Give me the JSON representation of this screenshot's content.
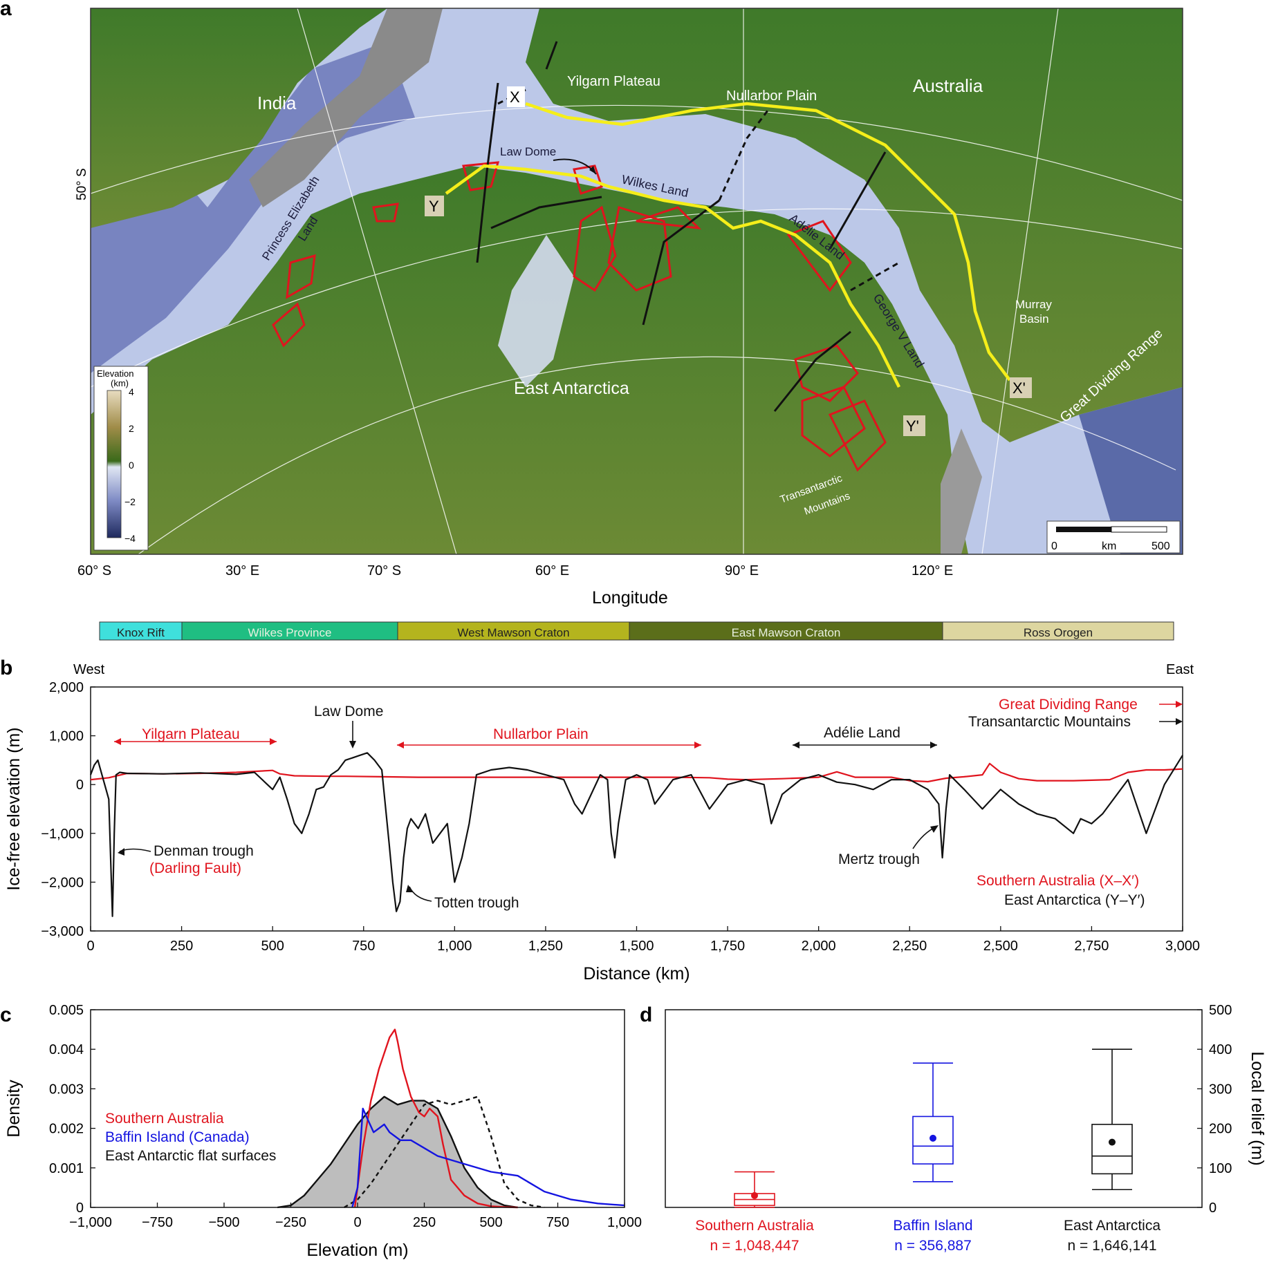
{
  "panel_a": {
    "letter": "a",
    "colorbar": {
      "title_line1": "Elevation",
      "title_line2": "(km)",
      "ticks": [
        "4",
        "2",
        "0",
        "−2",
        "−4"
      ]
    },
    "labels": {
      "india": "India",
      "australia": "Australia",
      "yilgarn": "Yilgarn Plateau",
      "nullarbor": "Nullarbor Plain",
      "law_dome": "Law Dome",
      "wilkes_land": "Wilkes Land",
      "adelie_land": "Adélie Land",
      "george_v": "George V Land",
      "princess_line1": "Princess Elizabeth",
      "princess_line2": "Land",
      "east_antarctica": "East Antarctica",
      "murray_line1": "Murray",
      "murray_line2": "Basin",
      "great_dividing": "Great Dividing Range",
      "transantarctic_line1": "Transantarctic",
      "transantarctic_line2": "Mountains",
      "X": "X",
      "Xp": "X'",
      "Y": "Y",
      "Yp": "Y'"
    },
    "lat_label_50": "50° S",
    "bottom_ticks": [
      "60° S",
      "30° E",
      "70° S",
      "60° E",
      "90° E",
      "120° E"
    ],
    "xlabel": "Longitude",
    "scalebar": {
      "left": "0",
      "mid": "km",
      "right": "500"
    },
    "provinces": [
      {
        "name": "Knox Rift",
        "color": "#3fe0dc",
        "dark_text": true
      },
      {
        "name": "Wilkes Province",
        "color": "#1fbe82",
        "dark_text": false
      },
      {
        "name": "West Mawson Craton",
        "color": "#b4b41e",
        "dark_text": true
      },
      {
        "name": "East Mawson Craton",
        "color": "#5b6e1a",
        "dark_text": false
      },
      {
        "name": "Ross Orogen",
        "color": "#ddd6a0",
        "dark_text": true
      }
    ]
  },
  "panel_b": {
    "letter": "b",
    "west": "West",
    "east": "East",
    "annotations": {
      "yilgarn": "Yilgarn Plateau",
      "law_dome": "Law Dome",
      "nullarbor": "Nullarbor Plain",
      "adelie": "Adélie Land",
      "gdr": "Great Dividing Range",
      "tam": "Transantarctic Mountains",
      "denman": "Denman trough",
      "darling": "(Darling Fault)",
      "totten": "Totten trough",
      "mertz": "Mertz trough",
      "legend_sa": "Southern Australia (X–X′)",
      "legend_ea": "East Antarctica (Y–Y′)"
    }
  },
  "panel_c": {
    "letter": "c",
    "legend": {
      "sa": "Southern Australia",
      "baffin": "Baffin Island (Canada)",
      "ea": "East Antarctic flat surfaces"
    }
  },
  "panel_d": {
    "letter": "d",
    "groups": [
      {
        "name": "Southern Australia",
        "n": "n = 1,048,447",
        "color": "#e0141e"
      },
      {
        "name": "Baffin Island",
        "n": "n = 356,887",
        "color": "#1414e0"
      },
      {
        "name": "East Antarctica",
        "n": "n = 1,646,141",
        "color": "#111111"
      }
    ]
  },
  "chart_data": [
    {
      "type": "line",
      "panel": "b",
      "xlabel": "Distance (km)",
      "ylabel": "Ice-free elevation (m)",
      "xlim": [
        0,
        3000
      ],
      "ylim": [
        -3000,
        2000
      ],
      "xticks": [
        "0",
        "250",
        "500",
        "750",
        "1,000",
        "1,250",
        "1,500",
        "1,750",
        "2,000",
        "2,250",
        "2,500",
        "2,750",
        "3,000"
      ],
      "yticks": [
        "2,000",
        "1,000",
        "0",
        "−1,000",
        "−2,000",
        "−3,000"
      ],
      "series": [
        {
          "name": "Southern Australia (X–X′)",
          "color": "#e0141e",
          "x": [
            0,
            50,
            100,
            200,
            300,
            400,
            500,
            520,
            560,
            650,
            700,
            800,
            900,
            1000,
            1100,
            1200,
            1300,
            1400,
            1500,
            1600,
            1700,
            1750,
            1800,
            1900,
            2000,
            2050,
            2100,
            2200,
            2250,
            2300,
            2350,
            2400,
            2450,
            2470,
            2500,
            2550,
            2600,
            2700,
            2800,
            2850,
            2900,
            2950,
            3000
          ],
          "y": [
            100,
            140,
            230,
            220,
            230,
            250,
            290,
            220,
            180,
            170,
            170,
            160,
            150,
            150,
            150,
            150,
            150,
            150,
            150,
            150,
            140,
            110,
            100,
            120,
            150,
            260,
            150,
            150,
            80,
            60,
            130,
            160,
            200,
            430,
            250,
            120,
            80,
            80,
            100,
            250,
            300,
            300,
            320
          ]
        },
        {
          "name": "East Antarctica (Y–Y′)",
          "color": "#111111",
          "x": [
            0,
            10,
            20,
            50,
            60,
            65,
            70,
            80,
            100,
            200,
            300,
            400,
            450,
            500,
            520,
            540,
            560,
            580,
            600,
            620,
            640,
            660,
            680,
            700,
            720,
            740,
            760,
            780,
            800,
            820,
            830,
            840,
            850,
            860,
            870,
            880,
            900,
            920,
            940,
            960,
            980,
            1000,
            1020,
            1040,
            1060,
            1100,
            1150,
            1200,
            1250,
            1300,
            1330,
            1350,
            1400,
            1420,
            1430,
            1440,
            1450,
            1470,
            1500,
            1530,
            1550,
            1600,
            1650,
            1700,
            1750,
            1800,
            1850,
            1870,
            1900,
            1950,
            2000,
            2050,
            2100,
            2150,
            2200,
            2250,
            2300,
            2330,
            2340,
            2350,
            2360,
            2400,
            2450,
            2500,
            2550,
            2600,
            2650,
            2700,
            2720,
            2750,
            2780,
            2850,
            2900,
            2950,
            3000
          ],
          "y": [
            200,
            400,
            500,
            -300,
            -2700,
            -1000,
            200,
            250,
            230,
            220,
            240,
            210,
            250,
            -100,
            150,
            -300,
            -800,
            -1000,
            -600,
            -100,
            -50,
            200,
            300,
            500,
            550,
            600,
            650,
            500,
            300,
            -1200,
            -2000,
            -2600,
            -2400,
            -1500,
            -900,
            -700,
            -900,
            -600,
            -1200,
            -1000,
            -800,
            -2000,
            -1500,
            -800,
            200,
            300,
            350,
            300,
            200,
            100,
            -400,
            -600,
            200,
            100,
            -1000,
            -1500,
            -800,
            100,
            200,
            100,
            -400,
            100,
            200,
            -500,
            0,
            100,
            0,
            -800,
            -200,
            100,
            200,
            50,
            0,
            -100,
            100,
            100,
            -100,
            -400,
            -1500,
            -500,
            200,
            -100,
            -500,
            -100,
            -400,
            -600,
            -700,
            -1000,
            -700,
            -800,
            -600,
            100,
            -1000,
            0,
            600
          ]
        }
      ]
    },
    {
      "type": "area",
      "panel": "c",
      "xlabel": "Elevation (m)",
      "ylabel": "Density",
      "xlim": [
        -1000,
        1000
      ],
      "ylim": [
        0,
        0.005
      ],
      "xticks": [
        "−1,000",
        "−750",
        "−500",
        "−250",
        "0",
        "250",
        "500",
        "750",
        "1,000"
      ],
      "yticks": [
        "0",
        "0.001",
        "0.002",
        "0.003",
        "0.004",
        "0.005"
      ],
      "series": [
        {
          "name": "East Antarctic flat surfaces (filled)",
          "color": "#111111",
          "fill": "#bdbdbd",
          "x": [
            -300,
            -250,
            -200,
            -150,
            -100,
            -50,
            0,
            50,
            100,
            150,
            200,
            250,
            300,
            350,
            400,
            450,
            500,
            550,
            600
          ],
          "y": [
            0,
            5e-05,
            0.0003,
            0.0007,
            0.0011,
            0.0016,
            0.0021,
            0.0025,
            0.0028,
            0.0026,
            0.0027,
            0.0027,
            0.0025,
            0.0018,
            0.001,
            0.0005,
            0.0002,
            5e-05,
            0
          ]
        },
        {
          "name": "East Antarctic flat surfaces (dashed)",
          "color": "#111111",
          "dashed": true,
          "x": [
            -50,
            0,
            50,
            100,
            150,
            200,
            250,
            300,
            350,
            400,
            450,
            500,
            550,
            600,
            650,
            700
          ],
          "y": [
            0,
            0.0002,
            0.0006,
            0.0011,
            0.0016,
            0.0021,
            0.0026,
            0.0027,
            0.0026,
            0.0027,
            0.0028,
            0.0018,
            0.0006,
            0.0002,
            5e-05,
            0
          ]
        },
        {
          "name": "Southern Australia",
          "color": "#e0141e",
          "x": [
            -10,
            0,
            20,
            50,
            80,
            100,
            120,
            140,
            150,
            170,
            200,
            230,
            250,
            270,
            300,
            320,
            350,
            400,
            450,
            500,
            550,
            600
          ],
          "y": [
            0,
            0.0005,
            0.0015,
            0.0027,
            0.0035,
            0.0039,
            0.0043,
            0.0045,
            0.0042,
            0.0035,
            0.0028,
            0.0024,
            0.0023,
            0.0025,
            0.0023,
            0.0016,
            0.0007,
            0.0003,
            0.0001,
            3e-05,
            1e-05,
            0
          ]
        },
        {
          "name": "Baffin Island (Canada)",
          "color": "#1414e0",
          "x": [
            -20,
            0,
            20,
            40,
            60,
            80,
            100,
            120,
            140,
            160,
            200,
            250,
            300,
            350,
            400,
            500,
            600,
            650,
            700,
            800,
            900,
            1000
          ],
          "y": [
            0,
            0.0005,
            0.0025,
            0.0022,
            0.0019,
            0.002,
            0.0021,
            0.0019,
            0.0018,
            0.0017,
            0.0017,
            0.0015,
            0.0013,
            0.0012,
            0.0011,
            0.0009,
            0.0008,
            0.0006,
            0.0004,
            0.0002,
            0.0001,
            5e-05
          ]
        }
      ]
    },
    {
      "type": "box",
      "panel": "d",
      "ylabel": "Local relief (m)",
      "ylim": [
        0,
        500
      ],
      "yticks": [
        "0",
        "100",
        "200",
        "300",
        "400",
        "500"
      ],
      "categories": [
        "Southern Australia",
        "Baffin Island",
        "East Antarctica"
      ],
      "series": [
        {
          "name": "Southern Australia",
          "min": 0,
          "q1": 5,
          "median": 20,
          "q3": 35,
          "max": 90,
          "mean": 30
        },
        {
          "name": "Baffin Island",
          "min": 65,
          "q1": 110,
          "median": 155,
          "q3": 230,
          "max": 365,
          "mean": 175
        },
        {
          "name": "East Antarctica",
          "min": 45,
          "q1": 85,
          "median": 130,
          "q3": 210,
          "max": 400,
          "mean": 165
        }
      ]
    }
  ]
}
